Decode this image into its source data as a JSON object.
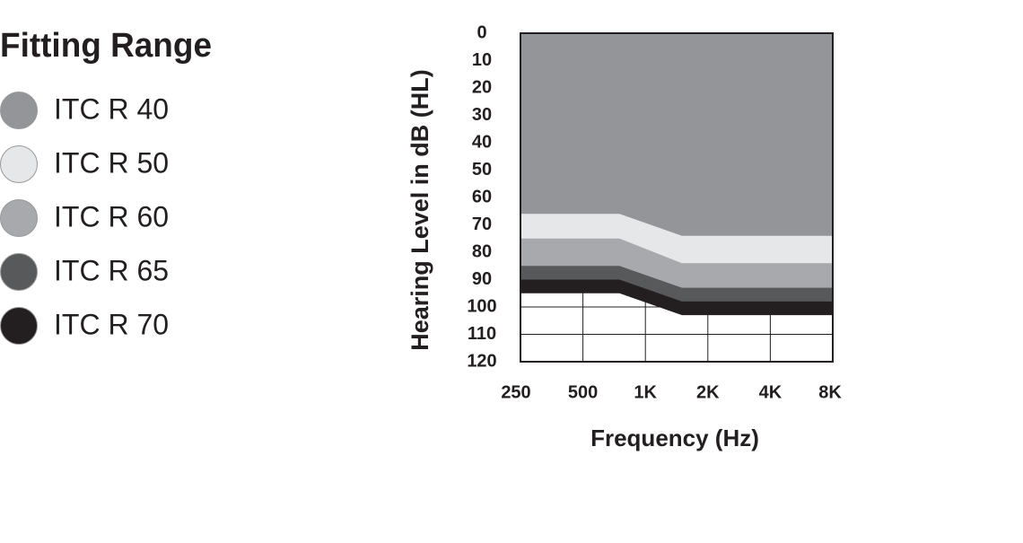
{
  "chart_data": {
    "type": "area",
    "legend_title": "Fitting Range",
    "x_label": "Frequency (Hz)",
    "y_label": "Hearing Level in dB (HL)",
    "x": [
      250,
      750,
      1500,
      8000
    ],
    "series": [
      {
        "name": "ITC R 40",
        "color": "#939598",
        "values": [
          66,
          66,
          74,
          74
        ]
      },
      {
        "name": "ITC R 50",
        "color": "#e6e7e8",
        "values": [
          75,
          75,
          84,
          84
        ]
      },
      {
        "name": "ITC R 60",
        "color": "#a7a9ac",
        "values": [
          85,
          85,
          93,
          93
        ]
      },
      {
        "name": "ITC R 65",
        "color": "#58595b",
        "values": [
          90,
          90,
          98,
          98
        ]
      },
      {
        "name": "ITC R 70",
        "color": "#231f20",
        "values": [
          95,
          95,
          103,
          103
        ]
      }
    ],
    "xlim": [
      250,
      8000
    ],
    "x_log": true,
    "xticks": [
      250,
      500,
      {
        "value": 1000,
        "label": "1K"
      },
      {
        "value": 2000,
        "label": "2K"
      },
      {
        "value": 4000,
        "label": "4K"
      },
      {
        "value": 8000,
        "label": "8K"
      }
    ],
    "ylim": [
      0,
      120
    ],
    "y_inverted": true,
    "yticks": [
      0,
      10,
      20,
      30,
      40,
      50,
      60,
      70,
      80,
      90,
      100,
      110,
      120
    ],
    "grid": true
  }
}
